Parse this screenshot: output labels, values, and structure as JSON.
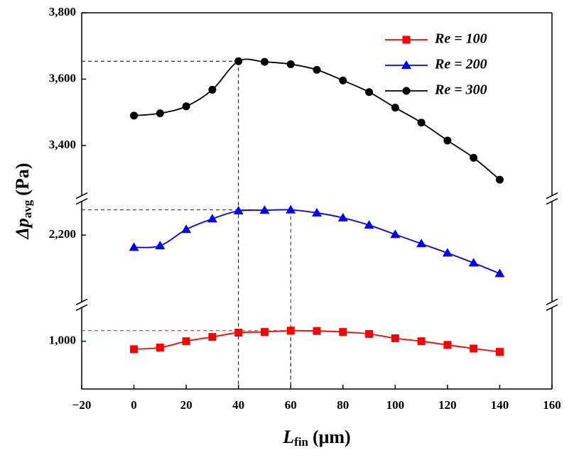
{
  "chart_data": {
    "type": "line",
    "xlabel": {
      "symbol": "L",
      "subscript": "fin",
      "unit": "(μm)"
    },
    "ylabel": {
      "symbol": "Δp",
      "subscript": "avg",
      "unit": "(Pa)"
    },
    "x": [
      0,
      10,
      20,
      30,
      40,
      50,
      60,
      70,
      80,
      90,
      100,
      110,
      120,
      130,
      140
    ],
    "xlim": [
      -20,
      160
    ],
    "xticks": [
      {
        "value": -20,
        "label": "−20"
      },
      0,
      20,
      40,
      60,
      80,
      100,
      120,
      140,
      160
    ],
    "y_segments": [
      {
        "ylim": [
          856,
          1110
        ],
        "yticks": [
          {
            "value": 1000,
            "label": "1,000"
          }
        ]
      },
      {
        "ylim": [
          1990,
          2310
        ],
        "yticks": [
          {
            "value": 2200,
            "label": "2,200"
          }
        ]
      },
      {
        "ylim": [
          3240,
          3800
        ],
        "yticks": [
          {
            "value": 3400,
            "label": "3,400"
          },
          {
            "value": 3600,
            "label": "3,600"
          },
          {
            "value": 3800,
            "label": "3,800"
          }
        ]
      }
    ],
    "peak_lines": true,
    "legend": "upper right",
    "series": [
      {
        "name": "Re = 100",
        "color": "#ff0000",
        "marker": "square",
        "values": [
          976,
          981,
          1000,
          1013,
          1026,
          1028,
          1032,
          1031,
          1028,
          1022,
          1009,
          1000,
          989,
          978,
          968
        ]
      },
      {
        "name": "Re = 200",
        "color": "#0000ff",
        "marker": "triangle",
        "values": [
          2163,
          2168,
          2217,
          2249,
          2273,
          2275,
          2276,
          2267,
          2252,
          2230,
          2202,
          2174,
          2146,
          2116,
          2084
        ]
      },
      {
        "name": "Re = 300",
        "color": "#000000",
        "marker": "circle",
        "values": [
          3490,
          3497,
          3518,
          3568,
          3654,
          3652,
          3645,
          3628,
          3596,
          3561,
          3514,
          3469,
          3415,
          3363,
          3297
        ]
      }
    ]
  }
}
